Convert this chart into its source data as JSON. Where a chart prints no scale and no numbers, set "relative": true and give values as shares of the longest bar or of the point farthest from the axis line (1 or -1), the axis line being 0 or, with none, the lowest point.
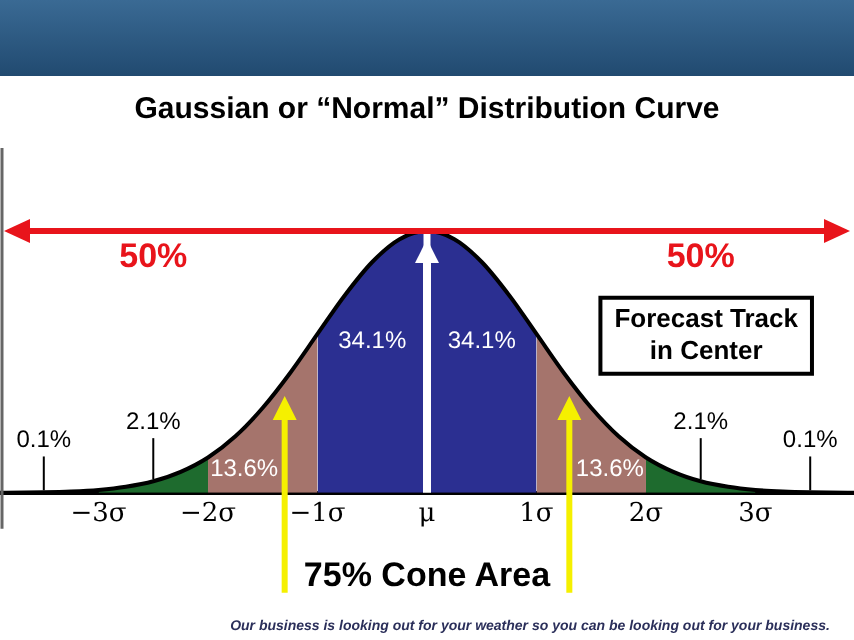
{
  "chart_data": {
    "type": "area",
    "title": "Gaussian or “Normal” Distribution Curve",
    "relative": true,
    "xlim": [
      -3.9,
      3.9
    ],
    "xticks": [
      {
        "value": -3,
        "label": "−3σ"
      },
      {
        "value": -2,
        "label": "−2σ"
      },
      {
        "value": -1,
        "label": "−1σ"
      },
      {
        "value": 0,
        "label": "μ"
      },
      {
        "value": 1,
        "label": "1σ"
      },
      {
        "value": 2,
        "label": "2σ"
      },
      {
        "value": 3,
        "label": "3σ"
      }
    ],
    "series": [
      {
        "type": "line",
        "color": "#000000",
        "x": [
          -3.9,
          -3.5,
          -3.25,
          -3,
          -2.75,
          -2.5,
          -2.25,
          -2,
          -1.75,
          -1.5,
          -1.25,
          -1,
          -0.75,
          -0.5,
          -0.25,
          0,
          0.25,
          0.5,
          0.75,
          1,
          1.25,
          1.5,
          1.75,
          2,
          2.25,
          2.5,
          2.75,
          3,
          3.25,
          3.5,
          3.9
        ],
        "values": [
          0,
          0.002,
          0.005,
          0.011,
          0.023,
          0.044,
          0.08,
          0.135,
          0.216,
          0.325,
          0.458,
          0.607,
          0.755,
          0.882,
          0.969,
          1,
          0.969,
          0.882,
          0.755,
          0.607,
          0.458,
          0.325,
          0.216,
          0.135,
          0.08,
          0.044,
          0.023,
          0.011,
          0.005,
          0.002,
          0
        ]
      },
      {
        "color": "#1e6b2e",
        "x": [
          -3,
          -2.75,
          -2.5,
          -2.25,
          -2
        ],
        "values": [
          0.011,
          0.023,
          0.044,
          0.08,
          0.135
        ]
      },
      {
        "color": "#a5746c",
        "x": [
          -2,
          -1.75,
          -1.5,
          -1.25,
          -1
        ],
        "values": [
          0.135,
          0.216,
          0.325,
          0.458,
          0.607
        ]
      },
      {
        "color": "#2b2f91",
        "x": [
          -1,
          -0.75,
          -0.5,
          -0.25,
          -0.03
        ],
        "values": [
          0.607,
          0.755,
          0.882,
          0.969,
          1
        ]
      },
      {
        "color": "#2b2f91",
        "x": [
          0.03,
          0.25,
          0.5,
          0.75,
          1
        ],
        "values": [
          1,
          0.969,
          0.882,
          0.755,
          0.607
        ]
      },
      {
        "color": "#a5746c",
        "x": [
          1,
          1.25,
          1.5,
          1.75,
          2
        ],
        "values": [
          0.607,
          0.458,
          0.325,
          0.216,
          0.135
        ]
      },
      {
        "color": "#1e6b2e",
        "x": [
          2,
          2.25,
          2.5,
          2.75,
          3
        ],
        "values": [
          0.135,
          0.08,
          0.044,
          0.023,
          0.011
        ]
      }
    ],
    "ref_lines": [
      {
        "axis": "y",
        "value": 1,
        "color": "#e8141b"
      }
    ],
    "annotations": [
      "50%",
      "50%",
      "0.1%",
      "2.1%",
      "13.6%",
      "34.1%",
      "34.1%",
      "13.6%",
      "2.1%",
      "0.1%",
      "Forecast Track in Center",
      "75% Cone Area",
      "Our business is looking out for your weather so you can be looking out for your business."
    ]
  }
}
